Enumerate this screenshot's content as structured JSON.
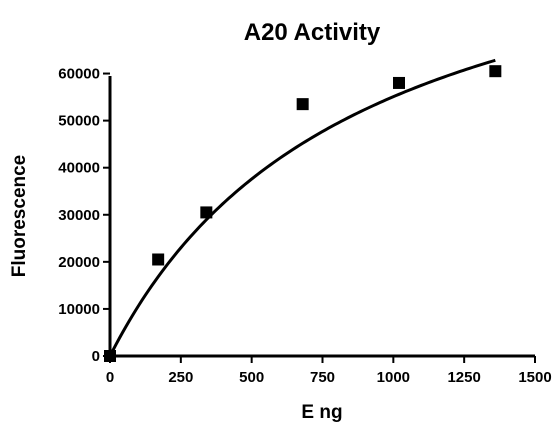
{
  "chart_data": {
    "type": "scatter",
    "title": "A20 Activity",
    "xlabel": "E ng",
    "ylabel": "Fluorescence",
    "xlim": [
      0,
      1500
    ],
    "ylim": [
      0,
      65000
    ],
    "x_ticks": [
      "0",
      "250",
      "500",
      "750",
      "1000",
      "1250",
      "1500"
    ],
    "y_ticks": [
      "0",
      "10000",
      "20000",
      "30000",
      "40000",
      "50000",
      "60000"
    ],
    "grid": false,
    "legend": "none",
    "series": [
      {
        "marker": "square",
        "color": "#000000",
        "x": [
          0,
          170,
          340,
          680,
          1020,
          1360
        ],
        "y": [
          0,
          20500,
          30500,
          53500,
          58000,
          60500
        ]
      }
    ],
    "fit": {
      "model": "one-site hyperbola",
      "bmax": 103000,
      "kd": 870,
      "x_range": [
        0,
        1360
      ],
      "color": "#000000"
    }
  }
}
